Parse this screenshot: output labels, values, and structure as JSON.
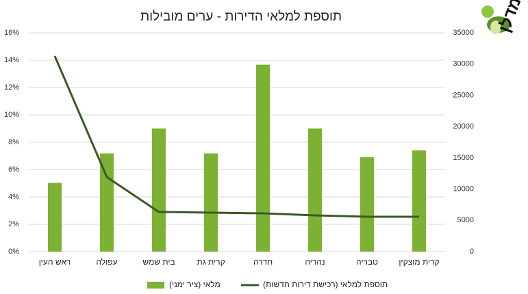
{
  "logo": "מדלן",
  "chart_data": {
    "type": "combo",
    "title": "תוספת למלאי הדירות - ערים מובילות",
    "categories": [
      "ראש העין",
      "עפולה",
      "בית שמש",
      "קרית גת",
      "חדרה",
      "נהריה",
      "טבריה",
      "קרית מוצקין"
    ],
    "series": [
      {
        "name": "מלאי (ציר ימני)",
        "type": "bar",
        "axis": "y2",
        "color": "#7cb133",
        "values": [
          11000,
          15700,
          19700,
          15700,
          29900,
          19700,
          15100,
          16200
        ]
      },
      {
        "name": "תוספת למלאי (רכישת דירות חדשות)",
        "type": "line",
        "color": "#3a5a25",
        "values": [
          14.3,
          5.45,
          2.9,
          2.85,
          2.8,
          2.65,
          2.55,
          2.55
        ]
      }
    ],
    "ylim": [
      0,
      16
    ],
    "yticks": [
      {
        "value": 0,
        "label": "0%"
      },
      {
        "value": 2,
        "label": "2%"
      },
      {
        "value": 4,
        "label": "4%"
      },
      {
        "value": 6,
        "label": "6%"
      },
      {
        "value": 8,
        "label": "8%"
      },
      {
        "value": 10,
        "label": "10%"
      },
      {
        "value": 12,
        "label": "12%"
      },
      {
        "value": 14,
        "label": "14%"
      },
      {
        "value": 16,
        "label": "16%"
      }
    ],
    "y2lim": [
      0,
      35000
    ],
    "y2ticks": [
      0,
      5000,
      10000,
      15000,
      20000,
      25000,
      30000,
      35000
    ],
    "grid": true
  }
}
